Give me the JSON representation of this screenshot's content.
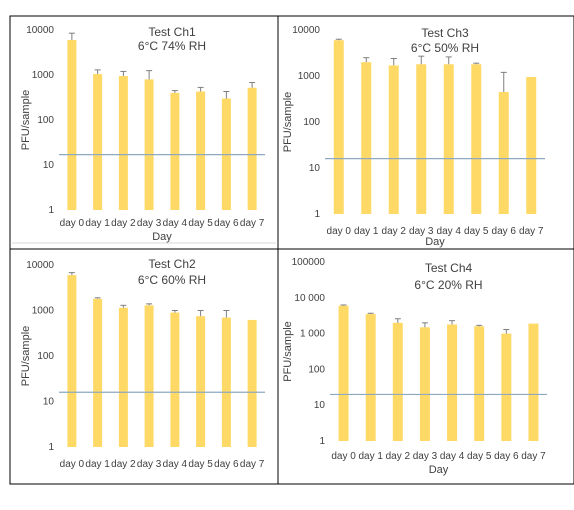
{
  "colors": {
    "bar": "#FFD966",
    "error": "#7F7F7F",
    "threshold": "#8EA9C1",
    "frame": "#000000",
    "text": "#404040"
  },
  "chart_data": [
    {
      "type": "bar",
      "title": "Test Ch1",
      "subtitle": "6°C 74% RH",
      "xlabel": "Day",
      "ylabel": "PFU/sample",
      "yscale": "log",
      "ylim": [
        1,
        10000
      ],
      "yticks": [
        "1",
        "10",
        "100",
        "1000",
        "10000"
      ],
      "categories": [
        "day 0",
        "day 1",
        "day 2",
        "day 3",
        "day 4",
        "day 5",
        "day 6",
        "day 7"
      ],
      "values": [
        6000,
        1050,
        950,
        800,
        400,
        430,
        300,
        520
      ],
      "error_high": [
        8500,
        1300,
        1200,
        1250,
        450,
        530,
        430,
        680
      ],
      "threshold": 17,
      "grid": false
    },
    {
      "type": "bar",
      "title": "Test Ch3",
      "subtitle": "6°C 50% RH",
      "xlabel": "Day",
      "ylabel": "PFU/sample",
      "yscale": "log",
      "ylim": [
        1,
        10000
      ],
      "yticks": [
        "1",
        "10",
        "100",
        "1000",
        "10000"
      ],
      "categories": [
        "day 0",
        "day 1",
        "day 2",
        "day 3",
        "day 4",
        "day 5",
        "day 6",
        "day 7"
      ],
      "values": [
        6000,
        2000,
        1700,
        1800,
        1800,
        1800,
        450,
        950
      ],
      "error_high": [
        6300,
        2500,
        2400,
        2700,
        2600,
        1900,
        1200,
        950
      ],
      "threshold": 16,
      "grid": false
    },
    {
      "type": "bar",
      "title": "Test Ch2",
      "subtitle": "6°C 60% RH",
      "xlabel": "",
      "ylabel": "PFU/sample",
      "yscale": "log",
      "ylim": [
        1,
        10000
      ],
      "yticks": [
        "1",
        "10",
        "100",
        "1000",
        "10000"
      ],
      "categories": [
        "day 0",
        "day 1",
        "day 2",
        "day 3",
        "day 4",
        "day 5",
        "day 6",
        "day 7"
      ],
      "values": [
        6000,
        1800,
        1150,
        1300,
        900,
        750,
        700,
        620
      ],
      "error_high": [
        6800,
        1900,
        1300,
        1400,
        1000,
        1000,
        1000,
        620
      ],
      "threshold": 16,
      "grid": false
    },
    {
      "type": "bar",
      "title": "Test Ch4",
      "subtitle": "6°C 20% RH",
      "xlabel": "Day",
      "ylabel": "PFU/sample",
      "yscale": "log",
      "ylim": [
        1,
        100000
      ],
      "yticks": [
        "1",
        "10",
        "100",
        "1 000",
        "10 000",
        "100000"
      ],
      "categories": [
        "day 0",
        "day 1",
        "day 2",
        "day 3",
        "day 4",
        "day 5",
        "day 6",
        "day 7"
      ],
      "values": [
        6000,
        3500,
        2000,
        1500,
        1800,
        1600,
        1000,
        1900
      ],
      "error_high": [
        6300,
        3700,
        2600,
        2000,
        2300,
        1700,
        1300,
        1900
      ],
      "threshold": 20,
      "grid": false
    }
  ]
}
